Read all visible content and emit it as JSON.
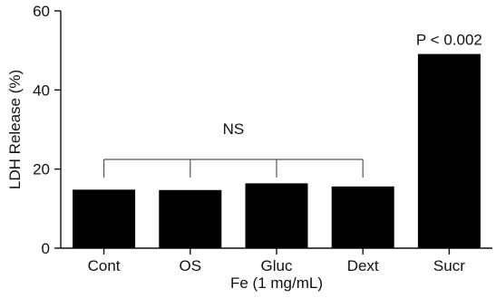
{
  "chart_data": {
    "type": "bar",
    "categories": [
      "Cont",
      "OS",
      "Gluc",
      "Dext",
      "Sucr"
    ],
    "values": [
      14.8,
      14.7,
      16.4,
      15.6,
      49.1
    ],
    "xlabel": "Fe (1 mg/mL)",
    "ylabel": "LDH Release (%)",
    "ylim": [
      0,
      60
    ],
    "yticks": [
      "0",
      "20",
      "40",
      "60"
    ],
    "grid": false,
    "bar_color": "#000000",
    "annotations": {
      "ns_label": "NS",
      "ns_group": [
        "Cont",
        "OS",
        "Gluc",
        "Dext"
      ],
      "sucr_label": "P < 0.002"
    }
  }
}
